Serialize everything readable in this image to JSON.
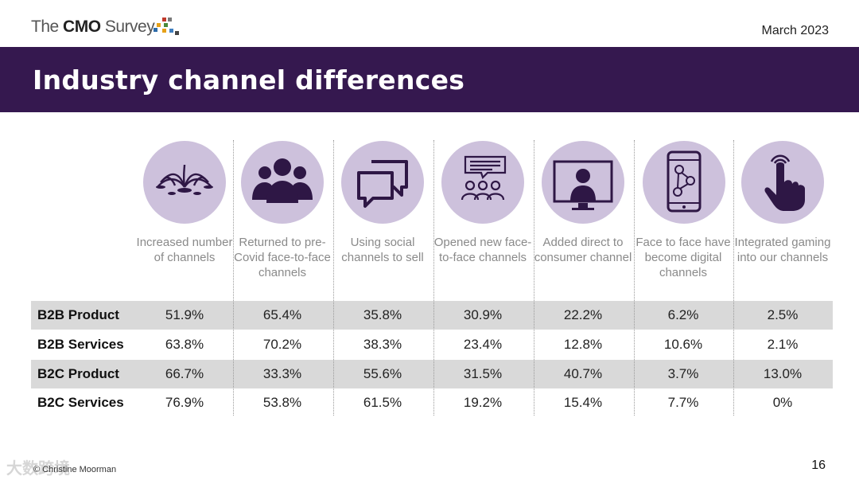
{
  "header": {
    "logo_pre": "The ",
    "logo_bold": "CMO",
    "logo_post": " Survey",
    "date": "March 2023",
    "title": "Industry channel differences"
  },
  "colors": {
    "title_bar": "#35184f",
    "icon_circle": "#cdc1dc",
    "icon_ink": "#2e1745",
    "row_shade": "#d9d9d9"
  },
  "columns": [
    {
      "label": "Increased number of channels",
      "icon": "fountain-icon"
    },
    {
      "label": "Returned to pre-Covid face-to-face channels",
      "icon": "people-group-icon"
    },
    {
      "label": "Using social channels to sell",
      "icon": "chat-bubbles-icon"
    },
    {
      "label": "Opened new face-to-face channels",
      "icon": "audience-chat-icon"
    },
    {
      "label": "Added direct to consumer channel",
      "icon": "monitor-person-icon"
    },
    {
      "label": "Face to face have become digital channels",
      "icon": "phone-network-icon"
    },
    {
      "label": "Integrated gaming into our channels",
      "icon": "touch-hand-icon"
    }
  ],
  "rows": [
    {
      "label": "B2B Product",
      "values": [
        "51.9%",
        "65.4%",
        "35.8%",
        "30.9%",
        "22.2%",
        "6.2%",
        "2.5%"
      ]
    },
    {
      "label": "B2B Services",
      "values": [
        "63.8%",
        "70.2%",
        "38.3%",
        "23.4%",
        "12.8%",
        "10.6%",
        "2.1%"
      ]
    },
    {
      "label": "B2C Product",
      "values": [
        "66.7%",
        "33.3%",
        "55.6%",
        "31.5%",
        "40.7%",
        "3.7%",
        "13.0%"
      ]
    },
    {
      "label": "B2C Services",
      "values": [
        "76.9%",
        "53.8%",
        "61.5%",
        "19.2%",
        "15.4%",
        "7.7%",
        "0%"
      ]
    }
  ],
  "footer": {
    "copyright": "© Christine Moorman",
    "watermark": "大数跨境",
    "page_number": "16"
  }
}
